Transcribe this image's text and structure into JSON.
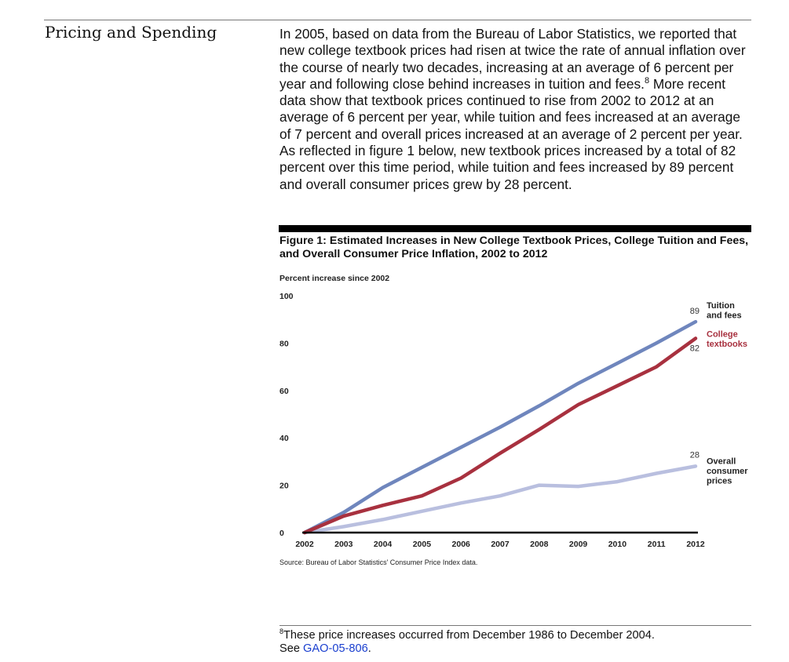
{
  "section": {
    "heading": "Pricing and Spending"
  },
  "body": {
    "part1": "In 2005, based on data from the Bureau of Labor Statistics, we reported that new college textbook prices had risen at twice the rate of annual inflation over the course of nearly two decades, increasing at an average of 6 percent per year and following close behind increases in tuition and fees.",
    "footnote_ref": "8",
    "part2": " More recent data show that textbook prices continued to rise from 2002 to 2012 at an average of 6 percent per year, while tuition and fees increased at an average of 7 percent and overall prices increased at an average of 2 percent per year. As reflected in figure 1 below, new textbook prices increased by a total of 82 percent over this time period, while tuition and fees increased by 89 percent and overall consumer prices grew by 28 percent."
  },
  "figure": {
    "title": "Figure 1: Estimated Increases in New College Textbook Prices, College Tuition and Fees, and Overall Consumer Price Inflation, 2002 to 2012",
    "source": "Source: Bureau of Labor Statistics' Consumer Price Index data."
  },
  "chart_data": {
    "type": "line",
    "ylabel": "Percent increase since 2002",
    "xlabel": "",
    "x": [
      2002,
      2003,
      2004,
      2005,
      2006,
      2007,
      2008,
      2009,
      2010,
      2011,
      2012
    ],
    "x_ticks": [
      "2002",
      "2003",
      "2004",
      "2005",
      "2006",
      "2007",
      "2008",
      "2009",
      "2010",
      "2011",
      "2012"
    ],
    "y_ticks": [
      "0",
      "20",
      "40",
      "60",
      "80",
      "100"
    ],
    "ylim": [
      0,
      100
    ],
    "grid": false,
    "legend": "direct labels at right end of each line",
    "series": [
      {
        "name": "Tuition and fees",
        "label_lines": [
          "Tuition",
          "and fees"
        ],
        "end_value_label": "89",
        "color": "#6f86bd",
        "label_color": "#222222",
        "values": [
          0,
          8.5,
          19,
          27.5,
          36,
          44.5,
          53.5,
          63,
          71.5,
          80,
          89
        ]
      },
      {
        "name": "College textbooks",
        "label_lines": [
          "College",
          "textbooks"
        ],
        "end_value_label": "82",
        "color": "#a8313f",
        "label_color": "#a8313f",
        "values": [
          0,
          7,
          11.5,
          15.5,
          23,
          33.5,
          43.5,
          54,
          62,
          70,
          82
        ]
      },
      {
        "name": "Overall consumer prices",
        "label_lines": [
          "Overall",
          "consumer",
          "prices"
        ],
        "end_value_label": "28",
        "color": "#b9bfdf",
        "label_color": "#222222",
        "values": [
          0,
          2.5,
          5.5,
          9,
          12.5,
          15.5,
          20,
          19.5,
          21.5,
          25,
          28
        ]
      }
    ]
  },
  "footnote": {
    "number": "8",
    "text_line1": "These price increases occurred from December 1986 to December 2004.",
    "text_see": "See ",
    "link_text": "GAO-05-806",
    "text_end": "."
  }
}
